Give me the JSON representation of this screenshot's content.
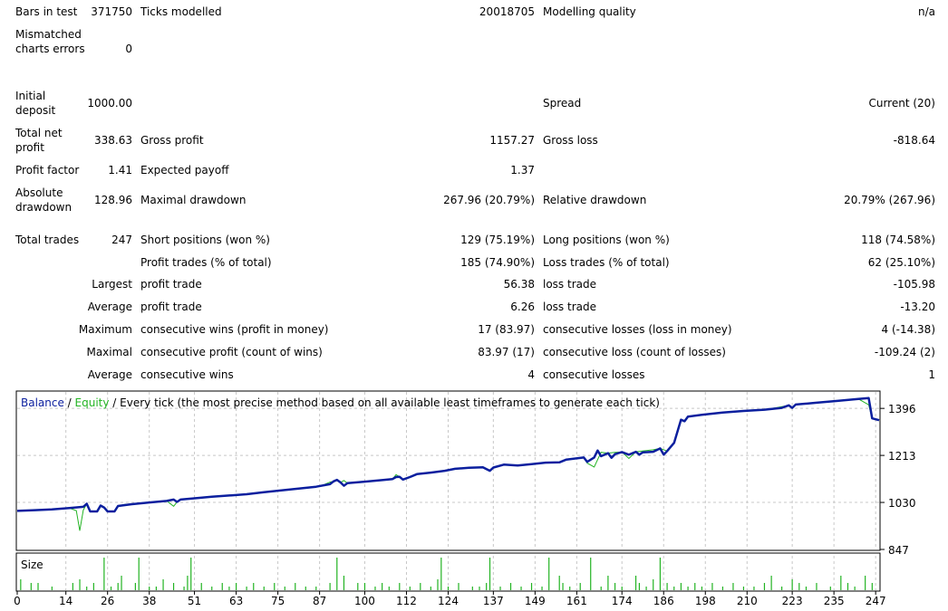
{
  "report": {
    "bars_in_test": {
      "label": "Bars in test",
      "value": "371750"
    },
    "ticks_modelled": {
      "label": "Ticks modelled",
      "value": "20018705"
    },
    "modelling_quality": {
      "label": "Modelling quality",
      "value": "n/a"
    },
    "mismatched": {
      "label": "Mismatched charts errors",
      "value": "0"
    },
    "initial_deposit": {
      "label": "Initial deposit",
      "value": "1000.00"
    },
    "spread": {
      "label": "Spread",
      "value": "Current (20)"
    },
    "total_net_profit": {
      "label": "Total net profit",
      "value": "338.63"
    },
    "gross_profit": {
      "label": "Gross profit",
      "value": "1157.27"
    },
    "gross_loss": {
      "label": "Gross loss",
      "value": "-818.64"
    },
    "profit_factor": {
      "label": "Profit factor",
      "value": "1.41"
    },
    "expected_payoff": {
      "label": "Expected payoff",
      "value": "1.37"
    },
    "absolute_drawdown": {
      "label": "Absolute drawdown",
      "value": "128.96"
    },
    "maximal_drawdown": {
      "label": "Maximal drawdown",
      "value": "267.96 (20.79%)"
    },
    "relative_drawdown": {
      "label": "Relative drawdown",
      "value": "20.79% (267.96)"
    },
    "total_trades": {
      "label": "Total trades",
      "value": "247"
    },
    "short_positions": {
      "label": "Short positions (won %)",
      "value": "129 (75.19%)"
    },
    "long_positions": {
      "label": "Long positions (won %)",
      "value": "118 (74.58%)"
    },
    "profit_trades": {
      "label": "Profit trades (% of total)",
      "value": "185 (74.90%)"
    },
    "loss_trades": {
      "label": "Loss trades (% of total)",
      "value": "62 (25.10%)"
    },
    "largest": {
      "label": "Largest",
      "profit_label": "profit trade",
      "profit_value": "56.38",
      "loss_label": "loss trade",
      "loss_value": "-105.98"
    },
    "average": {
      "label": "Average",
      "profit_label": "profit trade",
      "profit_value": "6.26",
      "loss_label": "loss trade",
      "loss_value": "-13.20"
    },
    "maximum": {
      "label": "Maximum",
      "wins_label": "consecutive wins (profit in money)",
      "wins_value": "17 (83.97)",
      "losses_label": "consecutive losses (loss in money)",
      "losses_value": "4 (-14.38)"
    },
    "maximal": {
      "label": "Maximal",
      "profit_label": "consecutive profit (count of wins)",
      "profit_value": "83.97 (17)",
      "loss_label": "consecutive loss (count of losses)",
      "loss_value": "-109.24 (2)"
    },
    "average_consec": {
      "label": "Average",
      "wins_label": "consecutive wins",
      "wins_value": "4",
      "losses_label": "consecutive losses",
      "losses_value": "1"
    }
  },
  "legend": {
    "balance": "Balance",
    "sep1": " / ",
    "equity": "Equity",
    "sep2": " / ",
    "method": "Every tick (the most precise method based on all available least timeframes to generate each tick)"
  },
  "size_label": "Size",
  "colors": {
    "balance": "#0b1f9e",
    "equity": "#22b322",
    "grid": "#c8c8c8",
    "size_bars": "#22b322",
    "border": "#000000"
  },
  "chart_data": {
    "type": "line",
    "ylim": [
      847,
      1460
    ],
    "y_ticks": [
      1396,
      1213,
      1030,
      847
    ],
    "x_ticks": [
      0,
      14,
      26,
      38,
      51,
      63,
      75,
      87,
      100,
      112,
      124,
      137,
      149,
      161,
      174,
      186,
      198,
      210,
      223,
      235,
      247
    ],
    "xlim": [
      0,
      248
    ],
    "series": [
      {
        "name": "Balance",
        "points": [
          [
            0,
            997
          ],
          [
            5,
            1000
          ],
          [
            10,
            1003
          ],
          [
            15,
            1008
          ],
          [
            19,
            1013
          ],
          [
            20,
            1025
          ],
          [
            21,
            995
          ],
          [
            23,
            995
          ],
          [
            24,
            1018
          ],
          [
            25,
            1010
          ],
          [
            26,
            995
          ],
          [
            28,
            995
          ],
          [
            29,
            1016
          ],
          [
            33,
            1023
          ],
          [
            38,
            1030
          ],
          [
            43,
            1036
          ],
          [
            45,
            1041
          ],
          [
            46,
            1032
          ],
          [
            47,
            1041
          ],
          [
            51,
            1046
          ],
          [
            56,
            1052
          ],
          [
            61,
            1057
          ],
          [
            66,
            1062
          ],
          [
            71,
            1070
          ],
          [
            76,
            1077
          ],
          [
            81,
            1084
          ],
          [
            86,
            1091
          ],
          [
            90,
            1101
          ],
          [
            91,
            1112
          ],
          [
            92,
            1118
          ],
          [
            93,
            1108
          ],
          [
            94,
            1095
          ],
          [
            95,
            1105
          ],
          [
            100,
            1111
          ],
          [
            105,
            1117
          ],
          [
            108,
            1121
          ],
          [
            109,
            1129
          ],
          [
            110,
            1130
          ],
          [
            111,
            1119
          ],
          [
            113,
            1129
          ],
          [
            115,
            1140
          ],
          [
            119,
            1146
          ],
          [
            123,
            1153
          ],
          [
            126,
            1161
          ],
          [
            130,
            1165
          ],
          [
            134,
            1167
          ],
          [
            136,
            1153
          ],
          [
            137,
            1166
          ],
          [
            140,
            1177
          ],
          [
            144,
            1174
          ],
          [
            148,
            1179
          ],
          [
            152,
            1185
          ],
          [
            156,
            1186
          ],
          [
            158,
            1197
          ],
          [
            162,
            1203
          ],
          [
            163,
            1205
          ],
          [
            164,
            1188
          ],
          [
            166,
            1205
          ],
          [
            167,
            1232
          ],
          [
            168,
            1210
          ],
          [
            170,
            1222
          ],
          [
            171,
            1204
          ],
          [
            172,
            1218
          ],
          [
            174,
            1226
          ],
          [
            176,
            1216
          ],
          [
            178,
            1227
          ],
          [
            179,
            1216
          ],
          [
            180,
            1225
          ],
          [
            183,
            1227
          ],
          [
            185,
            1240
          ],
          [
            186,
            1216
          ],
          [
            187,
            1230
          ],
          [
            189,
            1262
          ],
          [
            191,
            1352
          ],
          [
            192,
            1346
          ],
          [
            193,
            1364
          ],
          [
            197,
            1371
          ],
          [
            203,
            1380
          ],
          [
            209,
            1386
          ],
          [
            215,
            1391
          ],
          [
            220,
            1398
          ],
          [
            222,
            1408
          ],
          [
            223,
            1398
          ],
          [
            224,
            1411
          ],
          [
            230,
            1418
          ],
          [
            236,
            1425
          ],
          [
            242,
            1433
          ],
          [
            245,
            1436
          ],
          [
            246,
            1357
          ],
          [
            248,
            1350
          ]
        ]
      },
      {
        "name": "Equity",
        "points": [
          [
            0,
            997
          ],
          [
            5,
            1000
          ],
          [
            10,
            1003
          ],
          [
            15,
            1008
          ],
          [
            17,
            998
          ],
          [
            18,
            920
          ],
          [
            19,
            1000
          ],
          [
            20,
            1025
          ],
          [
            21,
            995
          ],
          [
            23,
            995
          ],
          [
            24,
            1018
          ],
          [
            25,
            1010
          ],
          [
            26,
            995
          ],
          [
            28,
            995
          ],
          [
            29,
            1016
          ],
          [
            31,
            1022
          ],
          [
            38,
            1030
          ],
          [
            43,
            1036
          ],
          [
            45,
            1015
          ],
          [
            46,
            1032
          ],
          [
            47,
            1041
          ],
          [
            51,
            1046
          ],
          [
            61,
            1057
          ],
          [
            71,
            1070
          ],
          [
            81,
            1084
          ],
          [
            86,
            1091
          ],
          [
            88,
            1098
          ],
          [
            90,
            1109
          ],
          [
            91,
            1112
          ],
          [
            92,
            1118
          ],
          [
            93,
            1108
          ],
          [
            94,
            1115
          ],
          [
            95,
            1105
          ],
          [
            100,
            1111
          ],
          [
            105,
            1117
          ],
          [
            108,
            1121
          ],
          [
            109,
            1138
          ],
          [
            110,
            1130
          ],
          [
            111,
            1121
          ],
          [
            113,
            1129
          ],
          [
            115,
            1140
          ],
          [
            119,
            1146
          ],
          [
            123,
            1153
          ],
          [
            126,
            1161
          ],
          [
            130,
            1165
          ],
          [
            134,
            1167
          ],
          [
            136,
            1153
          ],
          [
            137,
            1166
          ],
          [
            140,
            1177
          ],
          [
            144,
            1174
          ],
          [
            148,
            1179
          ],
          [
            152,
            1185
          ],
          [
            156,
            1186
          ],
          [
            158,
            1197
          ],
          [
            162,
            1203
          ],
          [
            163,
            1205
          ],
          [
            164,
            1183
          ],
          [
            166,
            1168
          ],
          [
            168,
            1225
          ],
          [
            170,
            1222
          ],
          [
            172,
            1225
          ],
          [
            174,
            1226
          ],
          [
            176,
            1201
          ],
          [
            178,
            1227
          ],
          [
            183,
            1235
          ],
          [
            185,
            1240
          ],
          [
            187,
            1230
          ],
          [
            189,
            1262
          ],
          [
            191,
            1352
          ],
          [
            192,
            1346
          ],
          [
            193,
            1364
          ],
          [
            197,
            1371
          ],
          [
            203,
            1380
          ],
          [
            209,
            1386
          ],
          [
            215,
            1391
          ],
          [
            219,
            1400
          ],
          [
            222,
            1408
          ],
          [
            223,
            1398
          ],
          [
            224,
            1411
          ],
          [
            230,
            1418
          ],
          [
            236,
            1425
          ],
          [
            242,
            1433
          ],
          [
            245,
            1410
          ],
          [
            246,
            1357
          ],
          [
            248,
            1350
          ]
        ]
      },
      {
        "name": "Size",
        "points": [
          [
            1,
            3
          ],
          [
            4,
            2
          ],
          [
            6,
            2
          ],
          [
            10,
            1
          ],
          [
            16,
            2
          ],
          [
            18,
            3
          ],
          [
            20,
            1
          ],
          [
            22,
            2
          ],
          [
            25,
            9
          ],
          [
            27,
            1
          ],
          [
            29,
            2
          ],
          [
            30,
            4
          ],
          [
            34,
            2
          ],
          [
            35,
            9
          ],
          [
            38,
            1
          ],
          [
            40,
            1
          ],
          [
            42,
            3
          ],
          [
            45,
            2
          ],
          [
            48,
            1
          ],
          [
            49,
            4
          ],
          [
            50,
            9
          ],
          [
            53,
            2
          ],
          [
            56,
            1
          ],
          [
            59,
            2
          ],
          [
            61,
            1
          ],
          [
            63,
            2
          ],
          [
            66,
            1
          ],
          [
            68,
            2
          ],
          [
            71,
            1
          ],
          [
            74,
            2
          ],
          [
            77,
            1
          ],
          [
            80,
            2
          ],
          [
            83,
            1
          ],
          [
            86,
            1
          ],
          [
            90,
            2
          ],
          [
            92,
            9
          ],
          [
            94,
            4
          ],
          [
            98,
            2
          ],
          [
            100,
            2
          ],
          [
            103,
            1
          ],
          [
            105,
            2
          ],
          [
            107,
            1
          ],
          [
            110,
            2
          ],
          [
            113,
            1
          ],
          [
            116,
            2
          ],
          [
            119,
            1
          ],
          [
            121,
            3
          ],
          [
            122,
            9
          ],
          [
            124,
            1
          ],
          [
            127,
            2
          ],
          [
            131,
            1
          ],
          [
            133,
            1
          ],
          [
            135,
            2
          ],
          [
            136,
            9
          ],
          [
            139,
            1
          ],
          [
            142,
            2
          ],
          [
            145,
            1
          ],
          [
            148,
            2
          ],
          [
            151,
            1
          ],
          [
            153,
            9
          ],
          [
            156,
            4
          ],
          [
            157,
            2
          ],
          [
            159,
            1
          ],
          [
            162,
            2
          ],
          [
            165,
            9
          ],
          [
            168,
            1
          ],
          [
            170,
            4
          ],
          [
            172,
            2
          ],
          [
            174,
            1
          ],
          [
            178,
            4
          ],
          [
            179,
            2
          ],
          [
            181,
            1
          ],
          [
            183,
            3
          ],
          [
            185,
            9
          ],
          [
            187,
            2
          ],
          [
            189,
            1
          ],
          [
            191,
            2
          ],
          [
            193,
            1
          ],
          [
            195,
            2
          ],
          [
            197,
            1
          ],
          [
            200,
            2
          ],
          [
            203,
            1
          ],
          [
            206,
            2
          ],
          [
            209,
            1
          ],
          [
            212,
            1
          ],
          [
            215,
            2
          ],
          [
            217,
            4
          ],
          [
            220,
            1
          ],
          [
            223,
            3
          ],
          [
            225,
            2
          ],
          [
            227,
            1
          ],
          [
            230,
            2
          ],
          [
            234,
            1
          ],
          [
            237,
            4
          ],
          [
            239,
            2
          ],
          [
            241,
            1
          ],
          [
            244,
            4
          ],
          [
            246,
            2
          ]
        ]
      }
    ]
  }
}
